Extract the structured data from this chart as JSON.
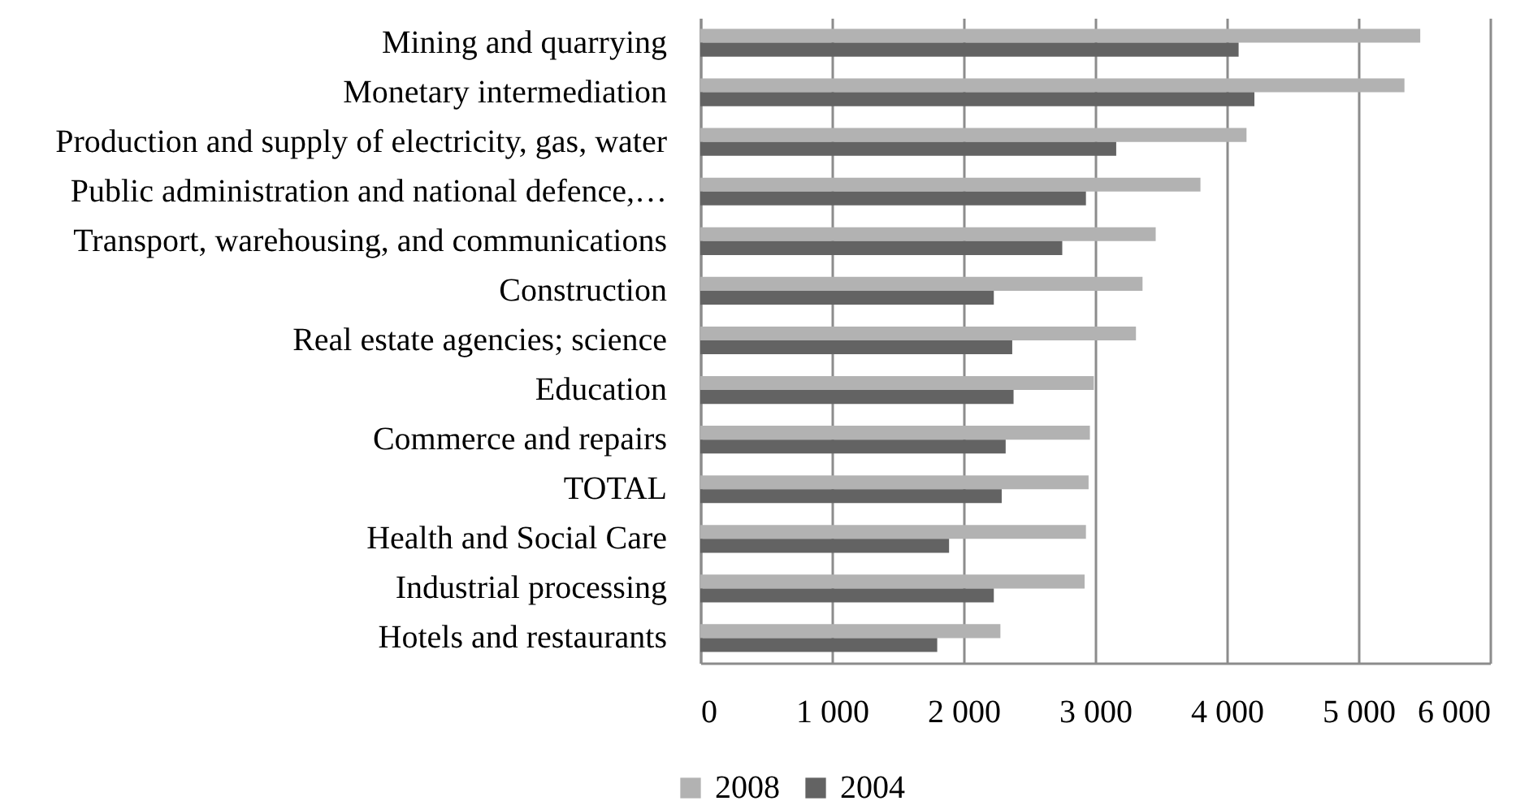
{
  "chart_data": {
    "type": "bar",
    "orientation": "horizontal",
    "categories": [
      "Mining and quarrying",
      "Monetary intermediation",
      "Production and supply of electricity, gas, water",
      "Public administration and national defence,…",
      "Transport, warehousing, and communications",
      "Construction",
      "Real estate agencies; science",
      "Education",
      "Commerce and repairs",
      "TOTAL",
      "Health and Social Care",
      "Industrial processing",
      "Hotels and restaurants"
    ],
    "series": [
      {
        "name": "2008",
        "color": "#b2b2b2",
        "values": [
          5470,
          5350,
          4150,
          3800,
          3460,
          3360,
          3310,
          2990,
          2960,
          2950,
          2930,
          2920,
          2280
        ]
      },
      {
        "name": "2004",
        "color": "#636363",
        "values": [
          4090,
          4210,
          3160,
          2930,
          2750,
          2230,
          2370,
          2380,
          2320,
          2290,
          1890,
          2230,
          1800
        ]
      }
    ],
    "xlim": [
      0,
      6000
    ],
    "xticks": [
      0,
      {
        "value": 1000,
        "label": "1 000"
      },
      {
        "value": 2000,
        "label": "2 000"
      },
      {
        "value": 3000,
        "label": "3 000"
      },
      {
        "value": 4000,
        "label": "4 000"
      },
      {
        "value": 5000,
        "label": "5 000"
      },
      {
        "value": 6000,
        "label": "6 000"
      }
    ],
    "grid": "x",
    "legend": "bottom"
  }
}
